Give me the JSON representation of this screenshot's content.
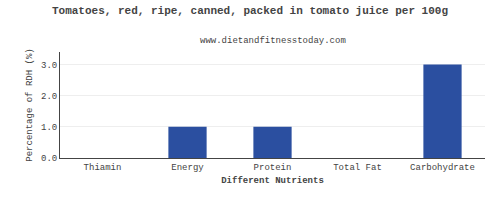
{
  "chart_data": {
    "type": "bar",
    "title": "Tomatoes, red, ripe, canned, packed in tomato juice per 100g",
    "subtitle": "www.dietandfitnesstoday.com",
    "xlabel": "Different Nutrients",
    "ylabel": "Percentage of RDH (%)",
    "categories": [
      "Thiamin",
      "Energy",
      "Protein",
      "Total Fat",
      "Carbohydrate"
    ],
    "values": [
      0.0,
      1.0,
      1.0,
      0.0,
      3.0
    ],
    "color": "#2b4fa0",
    "ylim": [
      0,
      3.4
    ],
    "yticks": [
      {
        "value": 0,
        "label": "0.0"
      },
      {
        "value": 1,
        "label": "1.0"
      },
      {
        "value": 2,
        "label": "2.0"
      },
      {
        "value": 3,
        "label": "3.0"
      }
    ],
    "grid": true
  }
}
